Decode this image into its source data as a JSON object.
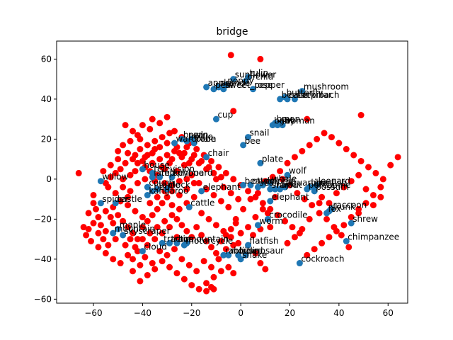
{
  "chart_data": {
    "type": "scatter",
    "title": "bridge",
    "xlabel": "",
    "ylabel": "",
    "xlim": [
      -75,
      68
    ],
    "ylim": [
      -62,
      69
    ],
    "xticks": [
      -60,
      -40,
      -20,
      0,
      20,
      40,
      60
    ],
    "yticks": [
      -60,
      -40,
      -20,
      0,
      20,
      40,
      60
    ],
    "grid": false,
    "colors": {
      "labeled": "#1f77b4",
      "other": "#ff0000",
      "axes": "#000000",
      "text": "#000000"
    },
    "labeled_points": [
      {
        "label": "sunflower",
        "x": -3,
        "y": 50
      },
      {
        "label": "tulip",
        "x": 3,
        "y": 51
      },
      {
        "label": "orchid",
        "x": 2,
        "y": 49
      },
      {
        "label": "poppy",
        "x": -6,
        "y": 47
      },
      {
        "label": "rose",
        "x": 5,
        "y": 45
      },
      {
        "label": "apple",
        "x": -14,
        "y": 46
      },
      {
        "label": "pear",
        "x": -11,
        "y": 45
      },
      {
        "label": "orange",
        "x": -9,
        "y": 46
      },
      {
        "label": "sweet_pepper",
        "x": -7,
        "y": 45
      },
      {
        "label": "mushroom",
        "x": 25,
        "y": 44
      },
      {
        "label": "butterfly",
        "x": 18,
        "y": 41
      },
      {
        "label": "beetle",
        "x": 16,
        "y": 40
      },
      {
        "label": "caterpillar",
        "x": 19,
        "y": 40
      },
      {
        "label": "cockroach",
        "x": 22,
        "y": 40
      },
      {
        "label": "cup",
        "x": -10,
        "y": 30
      },
      {
        "label": "baby",
        "x": 13,
        "y": 27
      },
      {
        "label": "boy",
        "x": 14,
        "y": 28
      },
      {
        "label": "girl",
        "x": 15,
        "y": 27
      },
      {
        "label": "man",
        "x": 16,
        "y": 28
      },
      {
        "label": "woman",
        "x": 17,
        "y": 27
      },
      {
        "label": "snail",
        "x": 3,
        "y": 21
      },
      {
        "label": "bee",
        "x": 1,
        "y": 17
      },
      {
        "label": "bowl",
        "x": -24,
        "y": 20
      },
      {
        "label": "bottle",
        "x": -22,
        "y": 19
      },
      {
        "label": "can",
        "x": -20,
        "y": 20
      },
      {
        "label": "wardrobe",
        "x": -27,
        "y": 18
      },
      {
        "label": "plain",
        "x": -19,
        "y": 18
      },
      {
        "label": "chair",
        "x": -14,
        "y": 11
      },
      {
        "label": "plate",
        "x": 8,
        "y": 8
      },
      {
        "label": "house",
        "x": -40,
        "y": 5
      },
      {
        "label": "television",
        "x": -36,
        "y": 3
      },
      {
        "label": "willow",
        "x": -57,
        "y": -1
      },
      {
        "label": "lamp",
        "x": -36,
        "y": 1
      },
      {
        "label": "telephone",
        "x": -33,
        "y": 1
      },
      {
        "label": "keyboard",
        "x": -28,
        "y": 1
      },
      {
        "label": "couch",
        "x": -38,
        "y": -4
      },
      {
        "label": "bed",
        "x": -36,
        "y": -6
      },
      {
        "label": "table",
        "x": -34,
        "y": -5
      },
      {
        "label": "clock",
        "x": -30,
        "y": -5
      },
      {
        "label": "kangaroo",
        "x": -38,
        "y": -8
      },
      {
        "label": "elephant",
        "x": -16,
        "y": -6
      },
      {
        "label": "wolf",
        "x": 19,
        "y": 2
      },
      {
        "label": "beaver",
        "x": 1,
        "y": -3
      },
      {
        "label": "otter",
        "x": 4,
        "y": -3
      },
      {
        "label": "seal",
        "x": 7,
        "y": -4
      },
      {
        "label": "dolphin",
        "x": 9,
        "y": -3
      },
      {
        "label": "whale",
        "x": 12,
        "y": -2
      },
      {
        "label": "shark",
        "x": 12,
        "y": -5
      },
      {
        "label": "ray",
        "x": 14,
        "y": -5
      },
      {
        "label": "trout",
        "x": 16,
        "y": -5
      },
      {
        "label": "aquarium_fish",
        "x": 18,
        "y": -4
      },
      {
        "label": "tiger",
        "x": 28,
        "y": -4
      },
      {
        "label": "lion",
        "x": 30,
        "y": -4
      },
      {
        "label": "leopard",
        "x": 31,
        "y": -3
      },
      {
        "label": "possum",
        "x": 30,
        "y": -6
      },
      {
        "label": "porcupine",
        "x": 27,
        "y": -5
      },
      {
        "label": "elephant",
        "x": 12,
        "y": -11
      },
      {
        "label": "cattle",
        "x": -21,
        "y": -14
      },
      {
        "label": "raccoon",
        "x": 37,
        "y": -15
      },
      {
        "label": "skunk",
        "x": 36,
        "y": -16
      },
      {
        "label": "fox",
        "x": 35,
        "y": -17
      },
      {
        "label": "crocodile",
        "x": 11,
        "y": -20
      },
      {
        "label": "worm",
        "x": 7,
        "y": -23
      },
      {
        "label": "shrew",
        "x": 45,
        "y": -22
      },
      {
        "label": "spider",
        "x": -57,
        "y": -12
      },
      {
        "label": "castle",
        "x": -51,
        "y": -12
      },
      {
        "label": "maple",
        "x": -50,
        "y": -25
      },
      {
        "label": "mountain",
        "x": -52,
        "y": -27
      },
      {
        "label": "skyscraper",
        "x": -48,
        "y": -28
      },
      {
        "label": "flatfish",
        "x": 3,
        "y": -33
      },
      {
        "label": "chimpanzee",
        "x": 43,
        "y": -31
      },
      {
        "label": "cloud",
        "x": -40,
        "y": -36
      },
      {
        "label": "tractor",
        "x": -32,
        "y": -32
      },
      {
        "label": "train",
        "x": -29,
        "y": -32
      },
      {
        "label": "bus",
        "x": -26,
        "y": -32
      },
      {
        "label": "motorcycle",
        "x": -23,
        "y": -33
      },
      {
        "label": "mountain",
        "x": -22,
        "y": -32
      },
      {
        "label": "rabbit",
        "x": -7,
        "y": -38
      },
      {
        "label": "mouse",
        "x": -5,
        "y": -38
      },
      {
        "label": "lizard",
        "x": -1,
        "y": -38
      },
      {
        "label": "dinosaur",
        "x": 2,
        "y": -38
      },
      {
        "label": "snake",
        "x": 0,
        "y": -40
      },
      {
        "label": "cockroach",
        "x": 24,
        "y": -42
      }
    ],
    "other_points": [
      [
        -4,
        62
      ],
      [
        8,
        60
      ],
      [
        -3,
        34
      ],
      [
        27,
        30
      ],
      [
        49,
        32
      ],
      [
        -30,
        31
      ],
      [
        -33,
        28
      ],
      [
        -36,
        30
      ],
      [
        -40,
        27
      ],
      [
        -37,
        25
      ],
      [
        -42,
        22
      ],
      [
        -45,
        19
      ],
      [
        -48,
        17
      ],
      [
        -50,
        14
      ],
      [
        -46,
        13
      ],
      [
        -44,
        10
      ],
      [
        -47,
        8
      ],
      [
        -49,
        5
      ],
      [
        -51,
        3
      ],
      [
        -53,
        1
      ],
      [
        -55,
        -2
      ],
      [
        -48,
        -4
      ],
      [
        -45,
        -6
      ],
      [
        -42,
        -2
      ],
      [
        -39,
        0
      ],
      [
        -35,
        -1
      ],
      [
        -31,
        -2
      ],
      [
        -28,
        -3
      ],
      [
        -25,
        -1
      ],
      [
        -22,
        0
      ],
      [
        -41,
        15
      ],
      [
        -38,
        17
      ],
      [
        -35,
        19
      ],
      [
        -32,
        21
      ],
      [
        -29,
        23
      ],
      [
        -26,
        16
      ],
      [
        -23,
        13
      ],
      [
        -20,
        10
      ],
      [
        -17,
        8
      ],
      [
        -14,
        5
      ],
      [
        -11,
        3
      ],
      [
        -8,
        1
      ],
      [
        -30,
        12
      ],
      [
        -33,
        10
      ],
      [
        -36,
        8
      ],
      [
        -39,
        6
      ],
      [
        -43,
        4
      ],
      [
        -46,
        -9
      ],
      [
        -49,
        -11
      ],
      [
        -52,
        -14
      ],
      [
        -55,
        -16
      ],
      [
        -58,
        -19
      ],
      [
        -60,
        -22
      ],
      [
        -62,
        -25
      ],
      [
        -63,
        -28
      ],
      [
        -61,
        -31
      ],
      [
        -58,
        -34
      ],
      [
        -55,
        -37
      ],
      [
        -52,
        -40
      ],
      [
        -49,
        -42
      ],
      [
        -46,
        -38
      ],
      [
        -43,
        -34
      ],
      [
        -40,
        -30
      ],
      [
        -37,
        -27
      ],
      [
        -34,
        -24
      ],
      [
        -31,
        -21
      ],
      [
        -28,
        -18
      ],
      [
        -25,
        -15
      ],
      [
        -22,
        -12
      ],
      [
        -19,
        -9
      ],
      [
        -16,
        -17
      ],
      [
        -13,
        -20
      ],
      [
        -10,
        -23
      ],
      [
        -7,
        -26
      ],
      [
        -4,
        -29
      ],
      [
        -1,
        -32
      ],
      [
        -5,
        -44
      ],
      [
        -8,
        -46
      ],
      [
        -11,
        -49
      ],
      [
        -14,
        -52
      ],
      [
        -17,
        -55
      ],
      [
        -20,
        -53
      ],
      [
        -23,
        -50
      ],
      [
        -26,
        -47
      ],
      [
        -29,
        -44
      ],
      [
        -32,
        -41
      ],
      [
        -35,
        -45
      ],
      [
        -38,
        -48
      ],
      [
        -41,
        -51
      ],
      [
        -44,
        -46
      ],
      [
        -12,
        -54
      ],
      [
        -14,
        -56
      ],
      [
        -11,
        -55
      ],
      [
        -3,
        -47
      ],
      [
        6,
        -37
      ],
      [
        8,
        -42
      ],
      [
        10,
        -45
      ],
      [
        5,
        -28
      ],
      [
        -2,
        -20
      ],
      [
        1,
        -15
      ],
      [
        4,
        -10
      ],
      [
        7,
        -7
      ],
      [
        10,
        -1
      ],
      [
        13,
        1
      ],
      [
        16,
        4
      ],
      [
        19,
        8
      ],
      [
        22,
        11
      ],
      [
        25,
        14
      ],
      [
        28,
        17
      ],
      [
        31,
        20
      ],
      [
        34,
        23
      ],
      [
        37,
        21
      ],
      [
        40,
        18
      ],
      [
        43,
        15
      ],
      [
        46,
        12
      ],
      [
        49,
        9
      ],
      [
        52,
        6
      ],
      [
        55,
        3
      ],
      [
        58,
        0
      ],
      [
        61,
        7
      ],
      [
        64,
        11
      ],
      [
        57,
        -4
      ],
      [
        54,
        -8
      ],
      [
        51,
        -12
      ],
      [
        48,
        -15
      ],
      [
        45,
        -19
      ],
      [
        42,
        -23
      ],
      [
        39,
        -26
      ],
      [
        36,
        -29
      ],
      [
        33,
        -32
      ],
      [
        30,
        -35
      ],
      [
        27,
        -38
      ],
      [
        24,
        -27
      ],
      [
        21,
        -24
      ],
      [
        18,
        -21
      ],
      [
        15,
        -18
      ],
      [
        12,
        -15
      ],
      [
        9,
        -12
      ],
      [
        6,
        -9
      ],
      [
        3,
        -6
      ],
      [
        0,
        -3
      ],
      [
        -3,
        0
      ],
      [
        -6,
        3
      ],
      [
        -9,
        6
      ],
      [
        -12,
        9
      ],
      [
        -15,
        12
      ],
      [
        -18,
        15
      ],
      [
        -21,
        18
      ],
      [
        -24,
        21
      ],
      [
        -27,
        24
      ],
      [
        44,
        -34
      ],
      [
        41,
        -28
      ],
      [
        38,
        -24
      ],
      [
        35,
        -20
      ],
      [
        32,
        -17
      ],
      [
        29,
        -13
      ],
      [
        26,
        -10
      ],
      [
        23,
        -7
      ],
      [
        20,
        -3
      ],
      [
        17,
        0
      ],
      [
        14,
        -9
      ],
      [
        11,
        -17
      ],
      [
        8,
        -25
      ],
      [
        -66,
        3
      ],
      [
        -64,
        -24
      ],
      [
        -60,
        -8
      ],
      [
        -58,
        -27
      ],
      [
        -56,
        -30
      ],
      [
        -54,
        -33
      ],
      [
        -52,
        -22
      ],
      [
        -50,
        -18
      ],
      [
        -48,
        -21
      ],
      [
        -46,
        -24
      ],
      [
        -44,
        -27
      ],
      [
        -42,
        -30
      ],
      [
        -40,
        -24
      ],
      [
        -38,
        -21
      ],
      [
        -36,
        -18
      ],
      [
        -34,
        -15
      ],
      [
        -32,
        -12
      ],
      [
        -30,
        -9
      ],
      [
        -28,
        -6
      ],
      [
        -26,
        -20
      ],
      [
        -24,
        -23
      ],
      [
        -22,
        -26
      ],
      [
        -20,
        -29
      ],
      [
        -18,
        -24
      ],
      [
        -16,
        -28
      ],
      [
        -14,
        -31
      ],
      [
        -12,
        -34
      ],
      [
        -10,
        -37
      ],
      [
        -8,
        -31
      ],
      [
        -6,
        -28
      ],
      [
        -4,
        -25
      ],
      [
        -2,
        -22
      ],
      [
        -47,
        27
      ],
      [
        -44,
        24
      ],
      [
        -41,
        20
      ],
      [
        -38,
        12
      ],
      [
        -35,
        15
      ],
      [
        -32,
        6
      ],
      [
        -29,
        8
      ],
      [
        -26,
        4
      ],
      [
        -23,
        7
      ],
      [
        -20,
        2
      ],
      [
        -17,
        -2
      ],
      [
        -14,
        -5
      ],
      [
        -11,
        -8
      ],
      [
        -8,
        -11
      ],
      [
        -5,
        -14
      ],
      [
        -50,
        10
      ],
      [
        -53,
        7
      ],
      [
        -56,
        4
      ],
      [
        -54,
        -4
      ],
      [
        -51,
        -7
      ],
      [
        -48,
        0
      ],
      [
        -45,
        2
      ],
      [
        -42,
        8
      ],
      [
        -39,
        11
      ],
      [
        -36,
        13
      ],
      [
        -33,
        16
      ],
      [
        -30,
        18
      ],
      [
        -27,
        14
      ],
      [
        -24,
        11
      ],
      [
        -21,
        8
      ],
      [
        -46,
        -13
      ],
      [
        -43,
        -16
      ],
      [
        -40,
        -19
      ],
      [
        -37,
        -12
      ],
      [
        -34,
        -9
      ],
      [
        -31,
        -6
      ],
      [
        -28,
        -13
      ],
      [
        -25,
        -8
      ],
      [
        -22,
        -5
      ],
      [
        -19,
        -2
      ],
      [
        -45,
        -30
      ],
      [
        -42,
        -36
      ],
      [
        -39,
        -39
      ],
      [
        -36,
        -42
      ],
      [
        -33,
        -36
      ],
      [
        -30,
        -38
      ],
      [
        -27,
        -35
      ],
      [
        -24,
        -40
      ],
      [
        -21,
        -43
      ],
      [
        -18,
        -46
      ],
      [
        -15,
        -41
      ],
      [
        -12,
        -44
      ],
      [
        -9,
        -40
      ],
      [
        -6,
        -35
      ],
      [
        -3,
        -33
      ],
      [
        0,
        -27
      ],
      [
        3,
        -24
      ],
      [
        6,
        -19
      ],
      [
        9,
        -15
      ],
      [
        12,
        -24
      ],
      [
        -60,
        -12
      ],
      [
        -62,
        -17
      ],
      [
        -59,
        -15
      ],
      [
        -57,
        -23
      ],
      [
        -53,
        -19
      ],
      [
        -55,
        -26
      ],
      [
        -51,
        -30
      ],
      [
        -47,
        -33
      ],
      [
        -44,
        -40
      ],
      [
        -41,
        -43
      ],
      [
        -38,
        -33
      ],
      [
        -35,
        -30
      ],
      [
        -32,
        -27
      ],
      [
        -29,
        -24
      ],
      [
        -26,
        -29
      ],
      [
        -43,
        12
      ],
      [
        -40,
        9
      ],
      [
        -37,
        4
      ],
      [
        -34,
        2
      ],
      [
        -31,
        5
      ],
      [
        -28,
        10
      ],
      [
        -25,
        13
      ],
      [
        -22,
        16
      ],
      [
        -19,
        12
      ],
      [
        -16,
        9
      ],
      [
        -13,
        6
      ],
      [
        -10,
        0
      ],
      [
        -7,
        -4
      ],
      [
        -4,
        -7
      ],
      [
        -1,
        -10
      ],
      [
        33,
        -9
      ],
      [
        36,
        -12
      ],
      [
        39,
        -7
      ],
      [
        42,
        -4
      ],
      [
        45,
        -1
      ],
      [
        48,
        2
      ],
      [
        51,
        -5
      ],
      [
        54,
        -13
      ],
      [
        57,
        -9
      ],
      [
        48,
        -17
      ],
      [
        32,
        -12
      ],
      [
        28,
        -20
      ],
      [
        25,
        -25
      ],
      [
        22,
        -29
      ],
      [
        19,
        -32
      ]
    ]
  }
}
